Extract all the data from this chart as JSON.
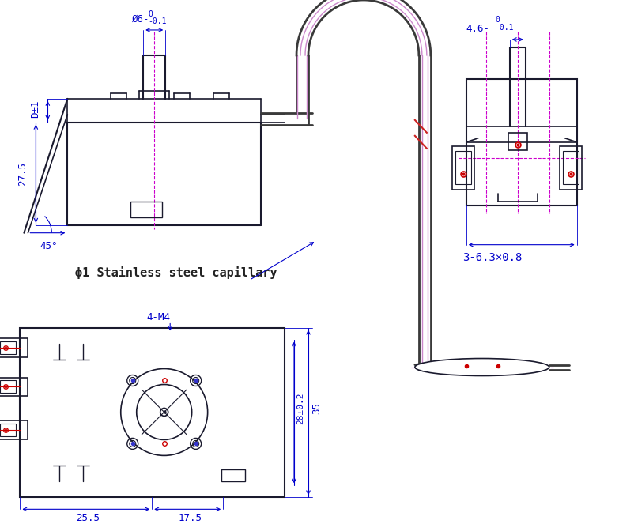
{
  "bg_color": "#ffffff",
  "line_color": "#1a1a2e",
  "dim_color": "#0000cc",
  "center_line_color": "#cc00cc",
  "red_dot_color": "#cc0000",
  "cap_outer": "#3a3a3a",
  "cap_inner": "#cc88cc",
  "title": "",
  "annotations": {
    "phi6": "Ø6-",
    "phi6_sup": "0",
    "phi6_sub": "-0.1",
    "D1": "D±1",
    "dim_27_5": "27.5",
    "dim_45": "45°",
    "capillary_label": "ϕ1 Stainless steel capillary",
    "dim_4_6": "4.6-",
    "dim_4_6_sup": "0",
    "dim_4_6_sub": "-0.1",
    "dim_363": "3-6.3×0.8",
    "dim_4M4": "4-M4",
    "dim_28": "28±0.2",
    "dim_35": "35",
    "dim_25_5": "25.5",
    "dim_17_5": "17.5"
  }
}
